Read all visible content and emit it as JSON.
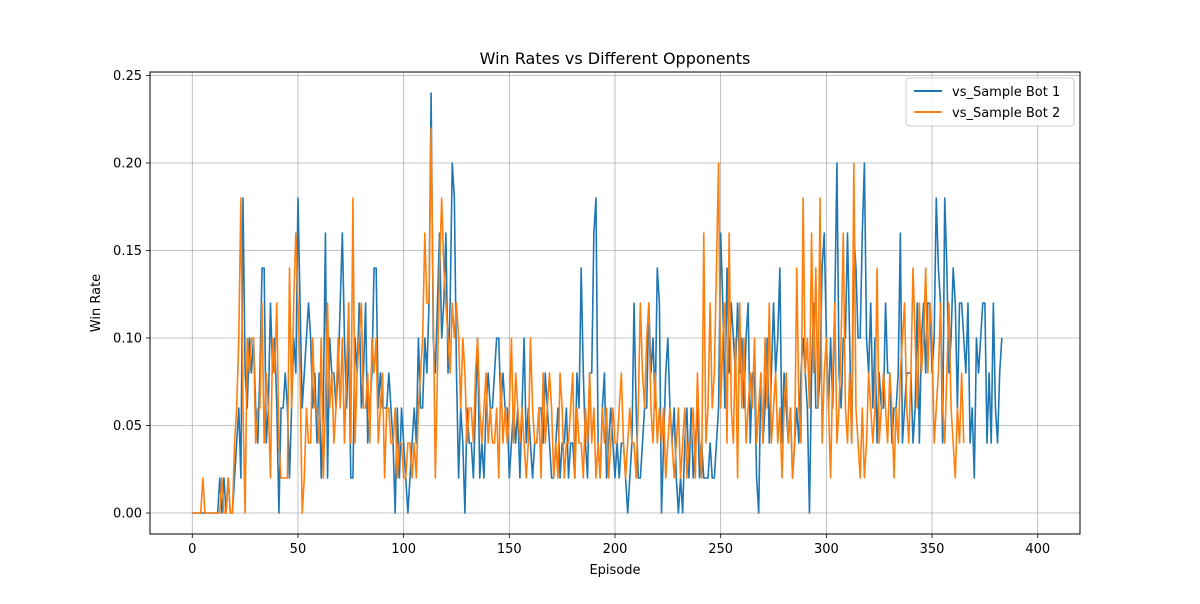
{
  "chart_data": {
    "type": "line",
    "title": "Win Rates vs Different Opponents",
    "xlabel": "Episode",
    "ylabel": "Win Rate",
    "xlim": [
      -20,
      420
    ],
    "ylim": [
      -0.012,
      0.252
    ],
    "xticks": [
      0,
      50,
      100,
      150,
      200,
      250,
      300,
      350,
      400
    ],
    "yticks": [
      0.0,
      0.05,
      0.1,
      0.15,
      0.2,
      0.25
    ],
    "ytick_labels": [
      "0.00",
      "0.05",
      "0.10",
      "0.15",
      "0.20",
      "0.25"
    ],
    "grid": true,
    "legend_position": "upper right",
    "x_start": 0,
    "x_step": 1,
    "series": [
      {
        "name": "vs_Sample Bot 1",
        "color": "#1f77b4",
        "values": [
          0,
          0,
          0,
          0,
          0,
          0,
          0,
          0,
          0,
          0,
          0,
          0,
          0,
          0.02,
          0,
          0.02,
          0,
          0.02,
          0,
          0,
          0.02,
          0.04,
          0.06,
          0.02,
          0.18,
          0.08,
          0.06,
          0.1,
          0.08,
          0.1,
          0.06,
          0.04,
          0.08,
          0.14,
          0.14,
          0.04,
          0.06,
          0.12,
          0.08,
          0.1,
          0.06,
          0,
          0.06,
          0.06,
          0.08,
          0.06,
          0.02,
          0.06,
          0.1,
          0.08,
          0.18,
          0.12,
          0.06,
          0.08,
          0.1,
          0.12,
          0.1,
          0.06,
          0.08,
          0.04,
          0.08,
          0.02,
          0.06,
          0.16,
          0.02,
          0.1,
          0.08,
          0.08,
          0.06,
          0.08,
          0.12,
          0.16,
          0.1,
          0.06,
          0.1,
          0.02,
          0.02,
          0.1,
          0.08,
          0.12,
          0.06,
          0.08,
          0.12,
          0.04,
          0.06,
          0.08,
          0.14,
          0.14,
          0.06,
          0.08,
          0.06,
          0.06,
          0.06,
          0.08,
          0.06,
          0.04,
          0,
          0.06,
          0.02,
          0.06,
          0.04,
          0.02,
          0,
          0.02,
          0.04,
          0.06,
          0.04,
          0.1,
          0.06,
          0.06,
          0.1,
          0.08,
          0.12,
          0.24,
          0.1,
          0.08,
          0.12,
          0.16,
          0.1,
          0.12,
          0.16,
          0.08,
          0.12,
          0.2,
          0.18,
          0.08,
          0.02,
          0.06,
          0.04,
          0,
          0.06,
          0.04,
          0.04,
          0.02,
          0.06,
          0.1,
          0.02,
          0.04,
          0.02,
          0.06,
          0.08,
          0.06,
          0.06,
          0.08,
          0.1,
          0.1,
          0.06,
          0.08,
          0.06,
          0.06,
          0.02,
          0.04,
          0.06,
          0.04,
          0.06,
          0.02,
          0.06,
          0.1,
          0.04,
          0.06,
          0.04,
          0.02,
          0.04,
          0.04,
          0.06,
          0.06,
          0.04,
          0.08,
          0.06,
          0.04,
          0.02,
          0.02,
          0.04,
          0.06,
          0.02,
          0.04,
          0.04,
          0.06,
          0.02,
          0.04,
          0.04,
          0.02,
          0.08,
          0.06,
          0.14,
          0.08,
          0.04,
          0.02,
          0.08,
          0.08,
          0.16,
          0.18,
          0.04,
          0.02,
          0.06,
          0.08,
          0.02,
          0.04,
          0.06,
          0.04,
          0.02,
          0.04,
          0.02,
          0.04,
          0.04,
          0.02,
          0,
          0.02,
          0.04,
          0.12,
          0.06,
          0.02,
          0.02,
          0.04,
          0.06,
          0.06,
          0.12,
          0.08,
          0.1,
          0.06,
          0.14,
          0.12,
          0,
          0.04,
          0.08,
          0.1,
          0.06,
          0.04,
          0.06,
          0.02,
          0,
          0.02,
          0,
          0.04,
          0.06,
          0.02,
          0.06,
          0.02,
          0.04,
          0.06,
          0.02,
          0.04,
          0.02,
          0.02,
          0.02,
          0.04,
          0.02,
          0.02,
          0.04,
          0.06,
          0.16,
          0.12,
          0.06,
          0.14,
          0.08,
          0.12,
          0.1,
          0.08,
          0.12,
          0.08,
          0.1,
          0.06,
          0.1,
          0.12,
          0.04,
          0.08,
          0.08,
          0.02,
          0,
          0.08,
          0.04,
          0.06,
          0.1,
          0.04,
          0.08,
          0.12,
          0.08,
          0.1,
          0.14,
          0.04,
          0.08,
          0.06,
          0.04,
          0.06,
          0.02,
          0.04,
          0.06,
          0.04,
          0.08,
          0.1,
          0.08,
          0.06,
          0,
          0.08,
          0.12,
          0.06,
          0.06,
          0.08,
          0.14,
          0.16,
          0.1,
          0.06,
          0.1,
          0.06,
          0.12,
          0.2,
          0.08,
          0.06,
          0.1,
          0.1,
          0.16,
          0.1,
          0.04,
          0.16,
          0.14,
          0.1,
          0.1,
          0.16,
          0.2,
          0.1,
          0.08,
          0.12,
          0.06,
          0.1,
          0.04,
          0.08,
          0.06,
          0.06,
          0.12,
          0.08,
          0.08,
          0.04,
          0.06,
          0.06,
          0.08,
          0.16,
          0.04,
          0.06,
          0.08,
          0.08,
          0.08,
          0.04,
          0.06,
          0.12,
          0.04,
          0.1,
          0.12,
          0.08,
          0.12,
          0.12,
          0.08,
          0.1,
          0.18,
          0.14,
          0.12,
          0.04,
          0.18,
          0.14,
          0.08,
          0.1,
          0.14,
          0.12,
          0.06,
          0.12,
          0.12,
          0.1,
          0.08,
          0.12,
          0.04,
          0.06,
          0.02,
          0.1,
          0.08,
          0.1,
          0.12,
          0.12,
          0.04,
          0.08,
          0.04,
          0.12,
          0.06,
          0.04,
          0.08,
          0.1
        ]
      },
      {
        "name": "vs_Sample Bot 2",
        "color": "#ff7f0e",
        "values": [
          0,
          0,
          0,
          0,
          0,
          0.02,
          0,
          0,
          0,
          0,
          0,
          0,
          0,
          0,
          0.02,
          0,
          0,
          0.02,
          0,
          0,
          0.04,
          0.06,
          0.1,
          0.18,
          0.06,
          0,
          0.1,
          0.08,
          0.1,
          0.1,
          0.04,
          0.06,
          0.06,
          0.12,
          0.04,
          0.08,
          0.06,
          0.02,
          0.1,
          0.08,
          0.12,
          0.04,
          0.02,
          0.02,
          0.02,
          0.02,
          0.14,
          0.06,
          0.12,
          0.16,
          0.12,
          0.08,
          0,
          0.02,
          0.06,
          0.04,
          0.04,
          0.1,
          0.06,
          0.06,
          0.04,
          0.1,
          0.02,
          0.06,
          0.12,
          0.06,
          0.08,
          0.04,
          0.06,
          0.1,
          0.06,
          0.1,
          0.04,
          0.08,
          0.12,
          0.04,
          0.18,
          0.04,
          0.08,
          0.1,
          0.12,
          0.06,
          0.06,
          0.08,
          0.04,
          0.1,
          0.08,
          0.1,
          0.04,
          0.06,
          0.08,
          0.02,
          0.06,
          0.06,
          0.04,
          0.04,
          0.06,
          0.02,
          0.04,
          0.04,
          0.02,
          0.02,
          0.04,
          0.04,
          0.02,
          0.04,
          0.02,
          0.06,
          0.08,
          0.1,
          0.16,
          0.12,
          0.12,
          0.22,
          0.12,
          0.02,
          0.08,
          0.14,
          0.18,
          0.14,
          0.12,
          0.1,
          0.08,
          0.12,
          0.1,
          0.12,
          0.1,
          0.06,
          0.1,
          0.08,
          0.04,
          0.06,
          0.06,
          0.04,
          0.08,
          0.1,
          0.06,
          0.04,
          0.06,
          0.08,
          0.04,
          0.06,
          0.04,
          0.04,
          0.06,
          0.02,
          0.08,
          0.04,
          0.06,
          0.04,
          0.06,
          0.1,
          0.04,
          0.08,
          0.06,
          0.04,
          0.06,
          0.04,
          0.02,
          0.04,
          0.1,
          0.06,
          0.04,
          0.04,
          0.06,
          0.02,
          0.08,
          0.04,
          0.06,
          0.08,
          0.06,
          0.02,
          0.04,
          0.02,
          0.08,
          0.06,
          0.02,
          0.04,
          0.04,
          0.06,
          0.08,
          0.02,
          0.06,
          0.04,
          0.04,
          0.02,
          0.06,
          0.04,
          0.08,
          0.04,
          0.06,
          0.02,
          0.04,
          0.02,
          0.06,
          0.04,
          0.06,
          0.02,
          0.04,
          0.06,
          0.04,
          0.04,
          0.06,
          0.08,
          0.04,
          0.02,
          0.04,
          0.06,
          0.04,
          0.04,
          0.02,
          0.06,
          0.12,
          0.08,
          0.06,
          0.1,
          0.12,
          0.06,
          0.04,
          0.08,
          0.04,
          0.06,
          0.04,
          0.06,
          0.02,
          0.04,
          0.06,
          0.04,
          0.02,
          0.04,
          0.06,
          0.02,
          0.04,
          0.06,
          0.02,
          0.04,
          0.04,
          0.06,
          0.02,
          0.08,
          0.04,
          0.02,
          0.16,
          0.04,
          0.06,
          0.12,
          0.06,
          0.08,
          0.14,
          0.2,
          0.06,
          0.1,
          0.12,
          0.04,
          0.16,
          0.06,
          0.04,
          0.1,
          0.02,
          0.12,
          0.06,
          0.1,
          0.04,
          0.06,
          0.08,
          0.06,
          0.1,
          0.04,
          0.06,
          0.08,
          0.04,
          0.1,
          0.06,
          0.12,
          0.04,
          0.06,
          0.08,
          0.04,
          0.06,
          0.02,
          0.06,
          0.08,
          0.04,
          0.06,
          0.02,
          0.04,
          0.14,
          0.06,
          0.04,
          0.18,
          0.08,
          0.1,
          0.06,
          0.16,
          0.08,
          0.14,
          0.06,
          0.18,
          0.04,
          0.08,
          0.1,
          0.06,
          0.02,
          0.08,
          0.12,
          0.04,
          0.06,
          0.1,
          0.16,
          0.06,
          0.04,
          0.08,
          0.04,
          0.2,
          0.06,
          0.04,
          0.02,
          0.06,
          0.02,
          0.04,
          0.08,
          0.06,
          0.04,
          0.06,
          0.14,
          0.04,
          0.06,
          0.08,
          0.06,
          0.04,
          0.08,
          0.06,
          0.02,
          0.06,
          0.04,
          0.08,
          0.1,
          0.12,
          0.06,
          0.04,
          0.08,
          0.14,
          0.1,
          0.06,
          0.12,
          0.08,
          0.1,
          0.14,
          0.08,
          0.12,
          0.1,
          0.04,
          0.06,
          0.08,
          0.12,
          0.06,
          0.04,
          0.08,
          0.12,
          0.06,
          0.04,
          0.02,
          0.06,
          0.04,
          0.08,
          0.04
        ]
      }
    ]
  }
}
